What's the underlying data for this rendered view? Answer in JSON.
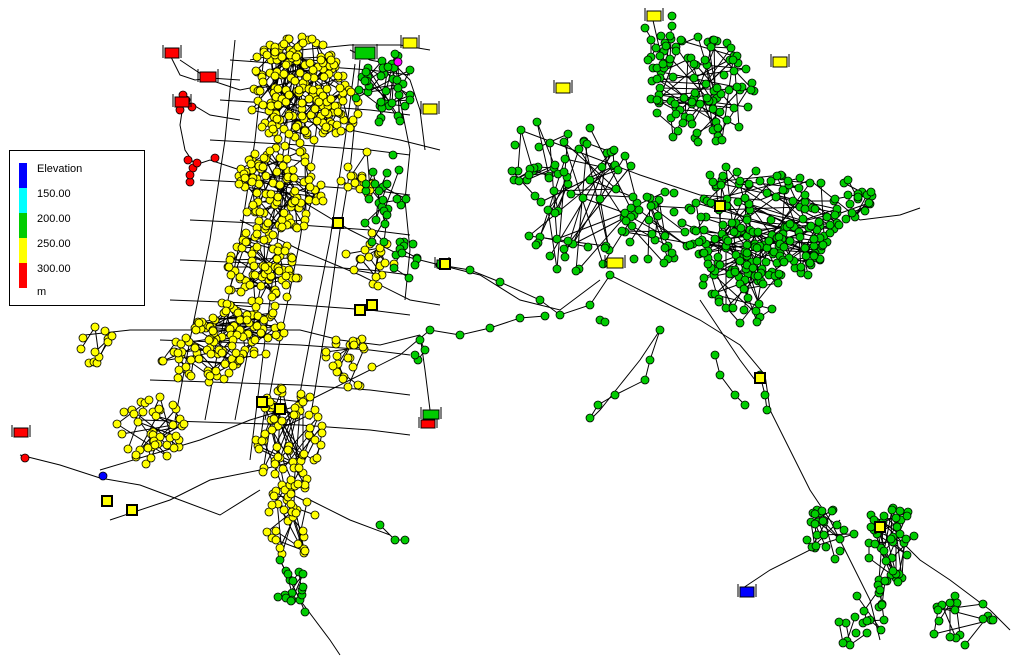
{
  "legend": {
    "title": "Elevation",
    "unit": "m",
    "breaks": [
      "150.00",
      "200.00",
      "250.00",
      "300.00"
    ],
    "colors": [
      "#0000ff",
      "#00ffff",
      "#00cc00",
      "#ffff00",
      "#ff0000"
    ]
  },
  "node_colors": {
    "red": "#ff0000",
    "yellow": "#ffff00",
    "green": "#00cc00",
    "blue": "#0000ff",
    "magenta": "#ff00ff"
  }
}
